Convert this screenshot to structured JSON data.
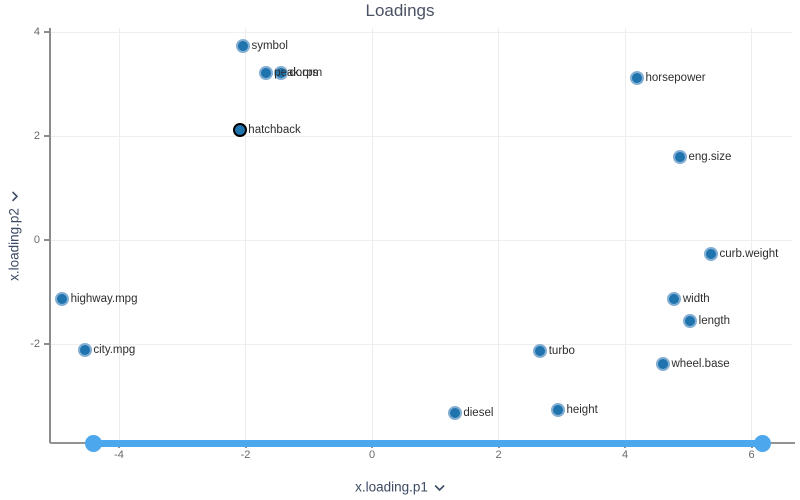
{
  "title": "Loadings",
  "axes": {
    "x": {
      "label": "x.loading.p1",
      "ticks": [
        -4,
        -2,
        0,
        2,
        4,
        6
      ]
    },
    "y": {
      "label": "x.loading.p2",
      "ticks": [
        -2,
        0,
        2,
        4
      ]
    }
  },
  "chart_data": {
    "type": "scatter",
    "title": "Loadings",
    "xlabel": "x.loading.p1",
    "ylabel": "x.loading.p2",
    "xlim": [
      -5.1,
      6.64
    ],
    "ylim": [
      -3.9,
      4.08
    ],
    "grid": true,
    "selected_point": "hatchback",
    "points": [
      {
        "label": "symbol",
        "x": -2.04,
        "y": 3.73
      },
      {
        "label": "doors",
        "x": -1.44,
        "y": 3.21
      },
      {
        "label": "peak.rpm",
        "x": -1.68,
        "y": 3.21
      },
      {
        "label": "hatchback",
        "x": -2.09,
        "y": 2.12,
        "selected": true
      },
      {
        "label": "horsepower",
        "x": 4.19,
        "y": 3.12
      },
      {
        "label": "eng.size",
        "x": 4.87,
        "y": 1.6
      },
      {
        "label": "curb.weight",
        "x": 5.36,
        "y": -0.27
      },
      {
        "label": "width",
        "x": 4.78,
        "y": -1.13
      },
      {
        "label": "length",
        "x": 5.03,
        "y": -1.56
      },
      {
        "label": "wheel.base",
        "x": 4.6,
        "y": -2.38
      },
      {
        "label": "turbo",
        "x": 2.66,
        "y": -2.13
      },
      {
        "label": "height",
        "x": 2.94,
        "y": -3.27
      },
      {
        "label": "diesel",
        "x": 1.31,
        "y": -3.33
      },
      {
        "label": "highway.mpg",
        "x": -4.9,
        "y": -1.13
      },
      {
        "label": "city.mpg",
        "x": -4.54,
        "y": -2.12
      }
    ]
  },
  "slider": {
    "start": -4.41,
    "end": 6.18
  },
  "colors": {
    "marker_fill": "#1f74ae",
    "marker_ring": "#84aed2",
    "selected_ring": "#000000",
    "slider": "#4da7ec",
    "gridline": "#ededed",
    "axis_line": "#8c8c8c",
    "title_text": "#4a5263",
    "axis_title_text": "#3d4a63"
  }
}
